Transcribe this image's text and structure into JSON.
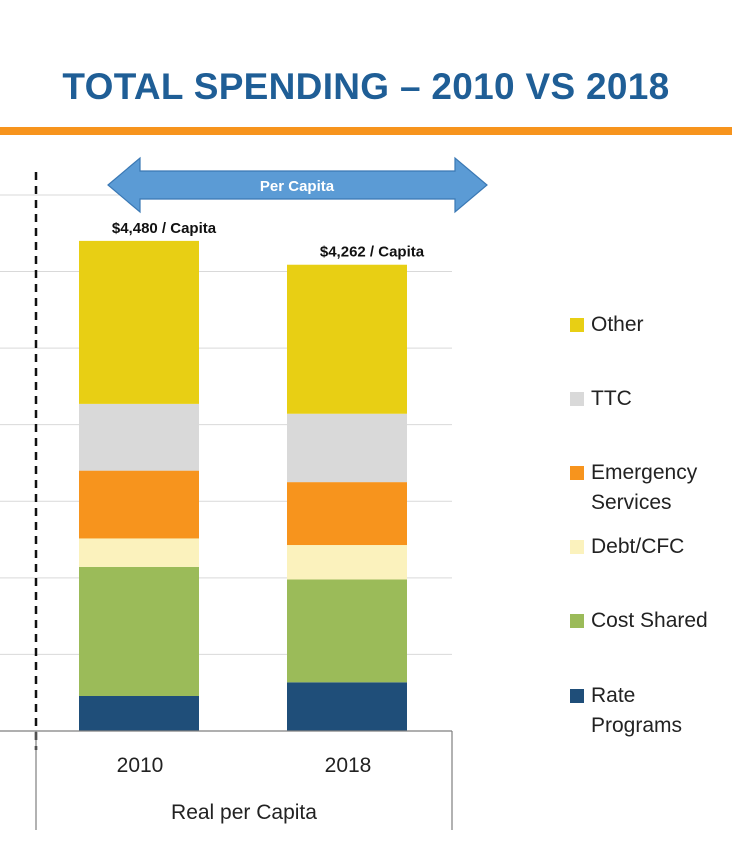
{
  "title": "TOTAL SPENDING – 2010 VS 2018",
  "accent_color": "#f7941d",
  "title_color": "#1f5e96",
  "arrow": {
    "label": "Per Capita",
    "color": "#5b9bd5",
    "direction": "double-headed"
  },
  "chart_data": {
    "type": "bar",
    "stacked": true,
    "title": "",
    "xlabel": "Real per Capita",
    "ylabel": "",
    "categories": [
      "2010",
      "2018"
    ],
    "total_labels": [
      "$4,480 / Capita",
      "$4,262 / Capita"
    ],
    "totals": [
      4480,
      4262
    ],
    "ylim": [
      0,
      5000
    ],
    "y_tick_labels_visible": false,
    "grid": true,
    "legend_position": "right",
    "series": [
      {
        "name": "Rate Programs",
        "color": "#1f4e79",
        "values": [
          320,
          445
        ]
      },
      {
        "name": "Cost Shared",
        "color": "#9bbb59",
        "values": [
          1180,
          940
        ]
      },
      {
        "name": "Debt/CFC",
        "color": "#fbf2bd",
        "values": [
          260,
          315
        ]
      },
      {
        "name": "Emergency Services",
        "color": "#f7941d",
        "values": [
          620,
          575
        ]
      },
      {
        "name": "TTC",
        "color": "#d9d9d9",
        "values": [
          610,
          625
        ]
      },
      {
        "name": "Other",
        "color": "#e8cf14",
        "values": [
          1490,
          1362
        ]
      }
    ]
  },
  "legend": [
    {
      "lines": [
        "Other"
      ],
      "color": "#e8cf14"
    },
    {
      "lines": [
        "TTC"
      ],
      "color": "#d9d9d9"
    },
    {
      "lines": [
        "Emergency",
        "Services"
      ],
      "color": "#f7941d"
    },
    {
      "lines": [
        "Debt/CFC"
      ],
      "color": "#fbf2bd"
    },
    {
      "lines": [
        "Cost Shared"
      ],
      "color": "#9bbb59"
    },
    {
      "lines": [
        "Rate",
        "Programs"
      ],
      "color": "#1f4e79"
    }
  ]
}
